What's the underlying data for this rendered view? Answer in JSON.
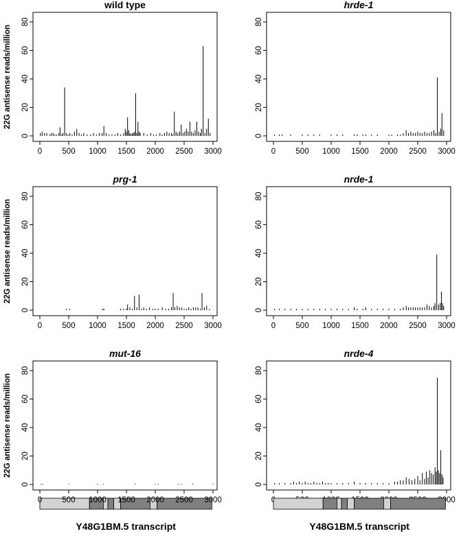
{
  "chart_data": [
    {
      "type": "bar",
      "title": "wild type",
      "title_style": "bold",
      "ylabel": "22G antisense reads/million",
      "xlim": [
        0,
        3000
      ],
      "ylim": [
        0,
        80
      ],
      "xticks": [
        0,
        500,
        1000,
        1500,
        2000,
        2500,
        3000
      ],
      "yticks": [
        0,
        20,
        40,
        60,
        80
      ],
      "x": [
        10,
        40,
        80,
        120,
        170,
        200,
        230,
        260,
        290,
        330,
        350,
        380,
        400,
        430,
        460,
        490,
        520,
        560,
        600,
        640,
        680,
        720,
        760,
        820,
        880,
        930,
        980,
        1030,
        1080,
        1110,
        1150,
        1200,
        1250,
        1300,
        1350,
        1400,
        1450,
        1480,
        1500,
        1520,
        1540,
        1560,
        1580,
        1600,
        1620,
        1640,
        1660,
        1680,
        1700,
        1720,
        1740,
        1800,
        1860,
        1920,
        1970,
        2020,
        2080,
        2120,
        2160,
        2200,
        2240,
        2280,
        2300,
        2330,
        2360,
        2390,
        2420,
        2450,
        2480,
        2510,
        2540,
        2570,
        2600,
        2630,
        2660,
        2690,
        2720,
        2750,
        2780,
        2800,
        2830,
        2860,
        2890,
        2920,
        2950
      ],
      "values": [
        2,
        3,
        2,
        2,
        1,
        2,
        2,
        1,
        1,
        2,
        6,
        1,
        2,
        34,
        2,
        1,
        2,
        1,
        3,
        5,
        2,
        1,
        2,
        1,
        1,
        2,
        1,
        2,
        2,
        7,
        2,
        1,
        1,
        1,
        2,
        1,
        2,
        5,
        3,
        13,
        4,
        2,
        1,
        2,
        2,
        3,
        30,
        2,
        10,
        3,
        2,
        2,
        1,
        2,
        1,
        1,
        2,
        1,
        2,
        3,
        2,
        2,
        1,
        17,
        3,
        2,
        3,
        8,
        2,
        3,
        5,
        3,
        10,
        3,
        2,
        4,
        10,
        3,
        2,
        5,
        63,
        2,
        5,
        12,
        2
      ],
      "transcript": {
        "label": "Y48G1BM.5 transcript",
        "segments": [
          {
            "start": 0,
            "end": 860,
            "color": "#d3d3d3"
          },
          {
            "start": 860,
            "end": 1100,
            "color": "#808080"
          },
          {
            "start": 1100,
            "end": 1180,
            "color": "#d3d3d3"
          },
          {
            "start": 1180,
            "end": 1280,
            "color": "#808080"
          },
          {
            "start": 1280,
            "end": 1400,
            "color": "#d3d3d3"
          },
          {
            "start": 1400,
            "end": 1910,
            "color": "#808080"
          },
          {
            "start": 1910,
            "end": 2030,
            "color": "#d3d3d3"
          },
          {
            "start": 2030,
            "end": 2980,
            "color": "#808080"
          }
        ]
      }
    },
    {
      "type": "bar",
      "title": "hrde-1",
      "title_style": "italic",
      "ylabel": "",
      "xlim": [
        0,
        3000
      ],
      "ylim": [
        0,
        80
      ],
      "xticks": [
        0,
        500,
        1000,
        1500,
        2000,
        2500,
        3000
      ],
      "yticks": [
        0,
        20,
        40,
        60,
        80
      ],
      "x": [
        20,
        100,
        150,
        300,
        500,
        600,
        700,
        800,
        1000,
        1100,
        1200,
        1400,
        1450,
        1550,
        1600,
        1700,
        1800,
        2000,
        2050,
        2150,
        2200,
        2250,
        2300,
        2340,
        2380,
        2420,
        2460,
        2500,
        2540,
        2580,
        2620,
        2660,
        2700,
        2740,
        2780,
        2810,
        2840,
        2870,
        2900,
        2920,
        2950
      ],
      "values": [
        1,
        1,
        1,
        1,
        1,
        1,
        1,
        1,
        1,
        1,
        1,
        1,
        1,
        1,
        1,
        1,
        1,
        1,
        1,
        1,
        1,
        2,
        4,
        2,
        3,
        2,
        2,
        3,
        2,
        2,
        3,
        2,
        2,
        3,
        4,
        2,
        41,
        3,
        5,
        16,
        4
      ]
    },
    {
      "type": "bar",
      "title": "prg-1",
      "title_style": "italic",
      "ylabel": "22G antisense reads/million",
      "xlim": [
        0,
        3000
      ],
      "ylim": [
        0,
        80
      ],
      "xticks": [
        0,
        500,
        1000,
        1500,
        2000,
        2500,
        3000
      ],
      "yticks": [
        0,
        20,
        40,
        60,
        80
      ],
      "x": [
        460,
        520,
        1090,
        1110,
        1400,
        1450,
        1500,
        1520,
        1560,
        1600,
        1640,
        1680,
        1720,
        1760,
        1800,
        1850,
        1900,
        1960,
        2000,
        2050,
        2120,
        2180,
        2230,
        2280,
        2310,
        2340,
        2380,
        2420,
        2460,
        2500,
        2540,
        2580,
        2620,
        2660,
        2700,
        2740,
        2780,
        2810,
        2850,
        2890,
        2940
      ],
      "values": [
        1,
        1,
        1,
        1,
        1,
        1,
        1,
        4,
        2,
        1,
        10,
        2,
        11,
        1,
        2,
        1,
        2,
        1,
        1,
        1,
        2,
        1,
        1,
        2,
        12,
        2,
        3,
        2,
        2,
        1,
        1,
        2,
        1,
        2,
        2,
        2,
        1,
        12,
        2,
        3,
        1
      ]
    },
    {
      "type": "bar",
      "title": "nrde-1",
      "title_style": "italic",
      "ylabel": "",
      "xlim": [
        0,
        3000
      ],
      "ylim": [
        0,
        80
      ],
      "xticks": [
        0,
        500,
        1000,
        1500,
        2000,
        2500,
        3000
      ],
      "yticks": [
        0,
        20,
        40,
        60,
        80
      ],
      "x": [
        20,
        100,
        200,
        300,
        400,
        500,
        600,
        700,
        800,
        900,
        1000,
        1100,
        1200,
        1300,
        1400,
        1450,
        1550,
        1600,
        1700,
        1800,
        1900,
        2000,
        2100,
        2200,
        2250,
        2300,
        2340,
        2380,
        2420,
        2460,
        2500,
        2540,
        2580,
        2620,
        2660,
        2700,
        2740,
        2780,
        2800,
        2830,
        2860,
        2890,
        2910,
        2930,
        2950
      ],
      "values": [
        1,
        1,
        1,
        1,
        1,
        1,
        1,
        1,
        1,
        1,
        1,
        1,
        1,
        1,
        2,
        1,
        1,
        2,
        1,
        1,
        1,
        1,
        1,
        1,
        2,
        3,
        2,
        2,
        2,
        2,
        2,
        2,
        2,
        2,
        4,
        3,
        2,
        3,
        5,
        39,
        4,
        5,
        13,
        5,
        3
      ]
    },
    {
      "type": "bar",
      "title": "mut-16",
      "title_style": "italic",
      "ylabel": "22G antisense reads/million",
      "xlim": [
        0,
        3000
      ],
      "ylim": [
        0,
        80
      ],
      "xticks": [
        0,
        500,
        1000,
        1500,
        2000,
        2500,
        3000
      ],
      "yticks": [
        0,
        20,
        40,
        60,
        80
      ],
      "x": [
        20,
        50,
        500,
        1000,
        1100,
        1650,
        2000,
        2050,
        2400,
        2450,
        2650,
        3000
      ],
      "values": [
        0.5,
        0.5,
        0.5,
        0.5,
        0.5,
        0.5,
        0.5,
        0.5,
        0.5,
        0.5,
        0.5,
        0.5
      ]
    },
    {
      "type": "bar",
      "title": "nrde-4",
      "title_style": "italic",
      "ylabel": "",
      "xlim": [
        0,
        3000
      ],
      "ylim": [
        0,
        80
      ],
      "xticks": [
        0,
        500,
        1000,
        1500,
        2000,
        2500,
        3000
      ],
      "yticks": [
        0,
        20,
        40,
        60,
        80
      ],
      "x": [
        20,
        100,
        200,
        300,
        350,
        400,
        450,
        500,
        550,
        600,
        650,
        700,
        750,
        800,
        850,
        900,
        950,
        1000,
        1100,
        1200,
        1300,
        1400,
        1500,
        1600,
        1700,
        1800,
        1900,
        2000,
        2100,
        2150,
        2200,
        2250,
        2300,
        2350,
        2400,
        2450,
        2500,
        2540,
        2580,
        2620,
        2650,
        2680,
        2710,
        2740,
        2770,
        2800,
        2820,
        2840,
        2860,
        2880,
        2900,
        2920,
        2940
      ],
      "values": [
        1,
        1,
        1,
        1,
        2,
        1,
        2,
        1,
        2,
        1,
        1,
        2,
        1,
        1,
        2,
        1,
        1,
        1,
        1,
        1,
        1,
        2,
        1,
        1,
        1,
        1,
        1,
        1,
        2,
        2,
        3,
        3,
        5,
        4,
        3,
        4,
        6,
        3,
        8,
        4,
        9,
        5,
        10,
        8,
        7,
        12,
        9,
        75,
        10,
        8,
        24,
        7,
        5
      ],
      "transcript": {
        "label": "Y48G1BM.5 transcript",
        "segments": [
          {
            "start": 0,
            "end": 860,
            "color": "#d3d3d3"
          },
          {
            "start": 860,
            "end": 1100,
            "color": "#808080"
          },
          {
            "start": 1100,
            "end": 1180,
            "color": "#d3d3d3"
          },
          {
            "start": 1180,
            "end": 1280,
            "color": "#808080"
          },
          {
            "start": 1280,
            "end": 1400,
            "color": "#d3d3d3"
          },
          {
            "start": 1400,
            "end": 1910,
            "color": "#808080"
          },
          {
            "start": 1910,
            "end": 2030,
            "color": "#d3d3d3"
          },
          {
            "start": 2030,
            "end": 2980,
            "color": "#808080"
          }
        ]
      }
    }
  ]
}
